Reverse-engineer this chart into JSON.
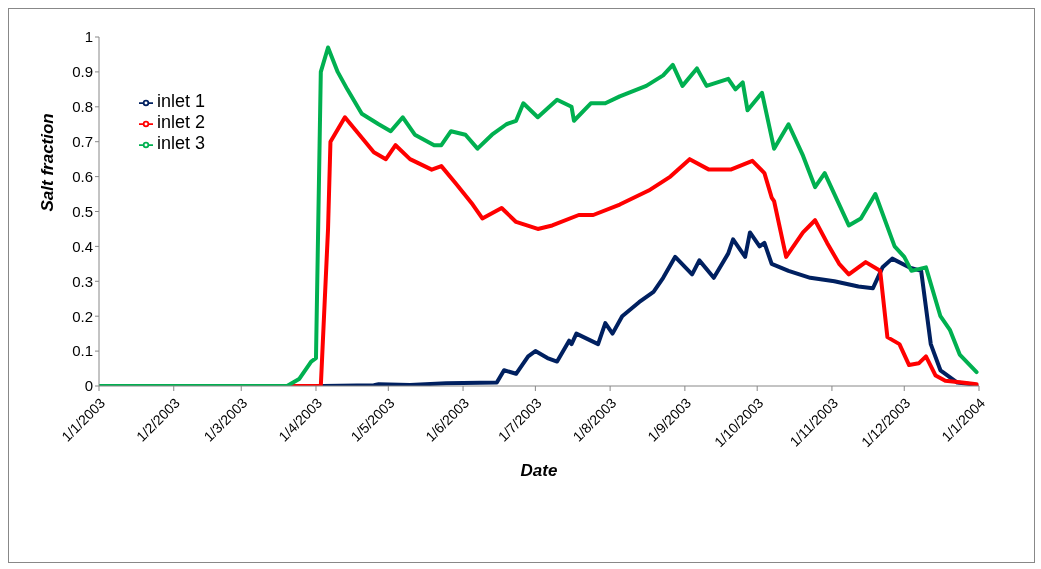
{
  "chart_data": {
    "type": "line",
    "xlabel": "Date",
    "ylabel": "Salt fraction",
    "xlim": [
      "2003-01-01",
      "2004-01-01"
    ],
    "xticks": [
      {
        "value": "2003-01-01",
        "label": "1/1/2003"
      },
      {
        "value": "2003-02-01",
        "label": "1/2/2003"
      },
      {
        "value": "2003-03-01",
        "label": "1/3/2003"
      },
      {
        "value": "2003-04-01",
        "label": "1/4/2003"
      },
      {
        "value": "2003-05-01",
        "label": "1/5/2003"
      },
      {
        "value": "2003-06-01",
        "label": "1/6/2003"
      },
      {
        "value": "2003-07-01",
        "label": "1/7/2003"
      },
      {
        "value": "2003-08-01",
        "label": "1/8/2003"
      },
      {
        "value": "2003-09-01",
        "label": "1/9/2003"
      },
      {
        "value": "2003-10-01",
        "label": "1/10/2003"
      },
      {
        "value": "2003-11-01",
        "label": "1/11/2003"
      },
      {
        "value": "2003-12-01",
        "label": "1/12/2003"
      },
      {
        "value": "2004-01-01",
        "label": "1/1/2004"
      }
    ],
    "ylim": [
      0,
      1
    ],
    "yticks": [
      0,
      0.1,
      0.2,
      0.3,
      0.4,
      0.5,
      0.6,
      0.7,
      0.8,
      0.9,
      1
    ],
    "grid": false,
    "legend": "top left",
    "marker": "none",
    "line_style": "solid",
    "series": [
      {
        "name": "inlet 1",
        "color": "#002060",
        "x": [
          "2003-01-01",
          "2003-04-04",
          "2003-04-25",
          "2003-04-27",
          "2003-05-10",
          "2003-05-25",
          "2003-06-15",
          "2003-06-18",
          "2003-06-23",
          "2003-06-28",
          "2003-07-01",
          "2003-07-06",
          "2003-07-10",
          "2003-07-15",
          "2003-07-16",
          "2003-07-18",
          "2003-07-27",
          "2003-07-30",
          "2003-08-02",
          "2003-08-06",
          "2003-08-13",
          "2003-08-19",
          "2003-08-23",
          "2003-08-28",
          "2003-09-04",
          "2003-09-07",
          "2003-09-13",
          "2003-09-19",
          "2003-09-21",
          "2003-09-26",
          "2003-09-28",
          "2003-10-02",
          "2003-10-04",
          "2003-10-07",
          "2003-10-14",
          "2003-10-23",
          "2003-11-02",
          "2003-11-12",
          "2003-11-18",
          "2003-11-22",
          "2003-11-26",
          "2003-12-03",
          "2003-12-08",
          "2003-12-12",
          "2003-12-16",
          "2003-12-19",
          "2003-12-23",
          "2003-12-29",
          "2003-12-31"
        ],
        "values": [
          0,
          0,
          0.002,
          0.005,
          0.003,
          0.008,
          0.01,
          0.045,
          0.035,
          0.085,
          0.1,
          0.08,
          0.07,
          0.13,
          0.12,
          0.15,
          0.12,
          0.18,
          0.15,
          0.2,
          0.24,
          0.27,
          0.31,
          0.37,
          0.32,
          0.36,
          0.31,
          0.38,
          0.42,
          0.37,
          0.44,
          0.4,
          0.41,
          0.35,
          0.33,
          0.31,
          0.3,
          0.285,
          0.28,
          0.34,
          0.365,
          0.34,
          0.33,
          0.12,
          0.045,
          0.03,
          0.01,
          0.005,
          0
        ]
      },
      {
        "name": "inlet 2",
        "color": "#ff0000",
        "x": [
          "2003-01-01",
          "2003-04-03",
          "2003-04-06",
          "2003-04-07",
          "2003-04-13",
          "2003-04-19",
          "2003-04-25",
          "2003-04-30",
          "2003-05-04",
          "2003-05-10",
          "2003-05-19",
          "2003-05-23",
          "2003-05-29",
          "2003-06-05",
          "2003-06-09",
          "2003-06-17",
          "2003-06-23",
          "2003-07-02",
          "2003-07-08",
          "2003-07-19",
          "2003-07-25",
          "2003-08-05",
          "2003-08-17",
          "2003-08-26",
          "2003-09-03",
          "2003-09-11",
          "2003-09-20",
          "2003-09-29",
          "2003-10-04",
          "2003-10-07",
          "2003-10-08",
          "2003-10-13",
          "2003-10-20",
          "2003-10-25",
          "2003-10-30",
          "2003-11-04",
          "2003-11-08",
          "2003-11-15",
          "2003-11-21",
          "2003-11-24",
          "2003-11-29",
          "2003-12-03",
          "2003-12-07",
          "2003-12-10",
          "2003-12-14",
          "2003-12-18",
          "2003-12-25",
          "2003-12-31"
        ],
        "values": [
          0,
          0,
          0.45,
          0.7,
          0.77,
          0.72,
          0.67,
          0.65,
          0.69,
          0.65,
          0.62,
          0.63,
          0.58,
          0.52,
          0.48,
          0.51,
          0.47,
          0.45,
          0.46,
          0.49,
          0.49,
          0.52,
          0.56,
          0.6,
          0.65,
          0.62,
          0.62,
          0.645,
          0.61,
          0.54,
          0.53,
          0.37,
          0.44,
          0.475,
          0.41,
          0.35,
          0.32,
          0.355,
          0.33,
          0.14,
          0.12,
          0.06,
          0.065,
          0.085,
          0.03,
          0.015,
          0.01,
          0.005
        ]
      },
      {
        "name": "inlet 3",
        "color": "#00b050",
        "x": [
          "2003-01-01",
          "2003-03-20",
          "2003-03-25",
          "2003-03-30",
          "2003-04-01",
          "2003-04-03",
          "2003-04-06",
          "2003-04-10",
          "2003-04-14",
          "2003-04-20",
          "2003-04-27",
          "2003-05-02",
          "2003-05-07",
          "2003-05-12",
          "2003-05-20",
          "2003-05-23",
          "2003-05-27",
          "2003-06-02",
          "2003-06-07",
          "2003-06-13",
          "2003-06-19",
          "2003-06-23",
          "2003-06-26",
          "2003-07-02",
          "2003-07-10",
          "2003-07-16",
          "2003-07-17",
          "2003-07-24",
          "2003-07-30",
          "2003-08-05",
          "2003-08-16",
          "2003-08-23",
          "2003-08-27",
          "2003-08-31",
          "2003-09-06",
          "2003-09-10",
          "2003-09-19",
          "2003-09-22",
          "2003-09-25",
          "2003-09-27",
          "2003-10-03",
          "2003-10-08",
          "2003-10-14",
          "2003-10-20",
          "2003-10-25",
          "2003-10-29",
          "2003-11-08",
          "2003-11-13",
          "2003-11-19",
          "2003-11-27",
          "2003-12-01",
          "2003-12-04",
          "2003-12-10",
          "2003-12-16",
          "2003-12-20",
          "2003-12-24",
          "2003-12-31"
        ],
        "values": [
          0,
          0,
          0.02,
          0.07,
          0.08,
          0.9,
          0.97,
          0.9,
          0.85,
          0.78,
          0.75,
          0.73,
          0.77,
          0.72,
          0.69,
          0.69,
          0.73,
          0.72,
          0.68,
          0.72,
          0.75,
          0.76,
          0.81,
          0.77,
          0.82,
          0.8,
          0.76,
          0.81,
          0.81,
          0.83,
          0.86,
          0.89,
          0.92,
          0.86,
          0.91,
          0.86,
          0.88,
          0.85,
          0.87,
          0.79,
          0.84,
          0.68,
          0.75,
          0.66,
          0.57,
          0.61,
          0.46,
          0.48,
          0.55,
          0.4,
          0.37,
          0.33,
          0.34,
          0.2,
          0.16,
          0.09,
          0.04
        ]
      }
    ]
  }
}
